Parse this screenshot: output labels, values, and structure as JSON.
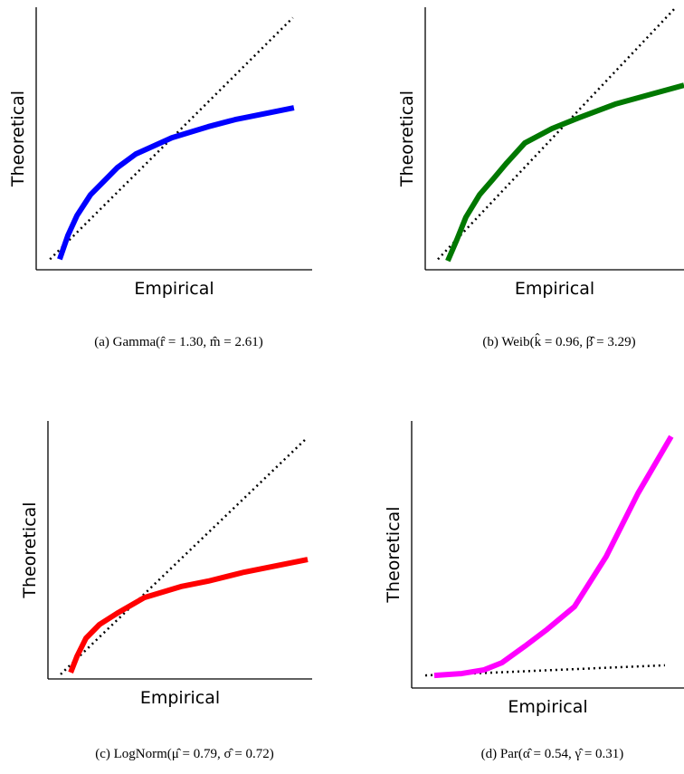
{
  "chart_data": [
    {
      "type": "line",
      "caption": "(a) Gamma(r̂ = 1.30, m̂ = 2.61)",
      "x_label": "Empirical",
      "y_label": "Theoretical",
      "xlim": [
        0,
        1
      ],
      "ylim": [
        0,
        1
      ],
      "series": [
        {
          "color": "#000000",
          "dotted": true,
          "x": [
            0.05,
            0.93
          ],
          "values": [
            0.04,
            0.96
          ]
        },
        {
          "color": "#0000ff",
          "dotted": false,
          "x": [
            0.085,
            0.115,
            0.148,
            0.197,
            0.246,
            0.295,
            0.361,
            0.492,
            0.623,
            0.721,
            0.934
          ],
          "values": [
            0.04,
            0.131,
            0.207,
            0.286,
            0.338,
            0.39,
            0.441,
            0.503,
            0.545,
            0.572,
            0.617
          ]
        }
      ]
    },
    {
      "type": "line",
      "caption": "(b) Weib(k̂ = 0.96, β̂ = 3.29)",
      "x_label": "Empirical",
      "y_label": "Theoretical",
      "xlim": [
        0,
        1
      ],
      "ylim": [
        0,
        1
      ],
      "series": [
        {
          "color": "#000000",
          "dotted": true,
          "x": [
            0.049,
            0.962
          ],
          "values": [
            0.04,
            0.993
          ]
        },
        {
          "color": "#007800",
          "dotted": false,
          "x": [
            0.087,
            0.122,
            0.157,
            0.21,
            0.262,
            0.315,
            0.385,
            0.49,
            0.594,
            0.734,
            0.874,
            1.0
          ],
          "values": [
            0.034,
            0.114,
            0.2,
            0.286,
            0.345,
            0.407,
            0.483,
            0.538,
            0.579,
            0.631,
            0.669,
            0.703
          ]
        }
      ]
    },
    {
      "type": "line",
      "caption": "(c) LogNorm(μ̂ = 0.79, σ̂ = 0.72)",
      "x_label": "Empirical",
      "y_label": "Theoretical",
      "xlim": [
        0,
        1
      ],
      "ylim": [
        0,
        1
      ],
      "series": [
        {
          "color": "#000000",
          "dotted": true,
          "x": [
            0.048,
            0.976
          ],
          "values": [
            0.018,
            0.93
          ]
        },
        {
          "color": "#ff0000",
          "dotted": false,
          "x": [
            0.086,
            0.11,
            0.144,
            0.195,
            0.264,
            0.366,
            0.503,
            0.606,
            0.743,
            0.983
          ],
          "values": [
            0.025,
            0.088,
            0.158,
            0.211,
            0.256,
            0.316,
            0.358,
            0.379,
            0.414,
            0.463
          ]
        }
      ]
    },
    {
      "type": "line",
      "caption": "(d) Par(α̂ = 0.54, γ̂ = 0.31)",
      "x_label": "Empirical",
      "y_label": "Theoretical",
      "xlim": [
        0,
        1
      ],
      "ylim": [
        0,
        1
      ],
      "series": [
        {
          "color": "#000000",
          "dotted": true,
          "x": [
            0.05,
            0.93
          ],
          "values": [
            0.047,
            0.085
          ]
        },
        {
          "color": "#ff00ff",
          "dotted": false,
          "x": [
            0.083,
            0.183,
            0.266,
            0.332,
            0.415,
            0.498,
            0.598,
            0.714,
            0.831,
            0.953
          ],
          "values": [
            0.047,
            0.054,
            0.068,
            0.095,
            0.156,
            0.22,
            0.305,
            0.492,
            0.729,
            0.942
          ]
        }
      ]
    }
  ]
}
